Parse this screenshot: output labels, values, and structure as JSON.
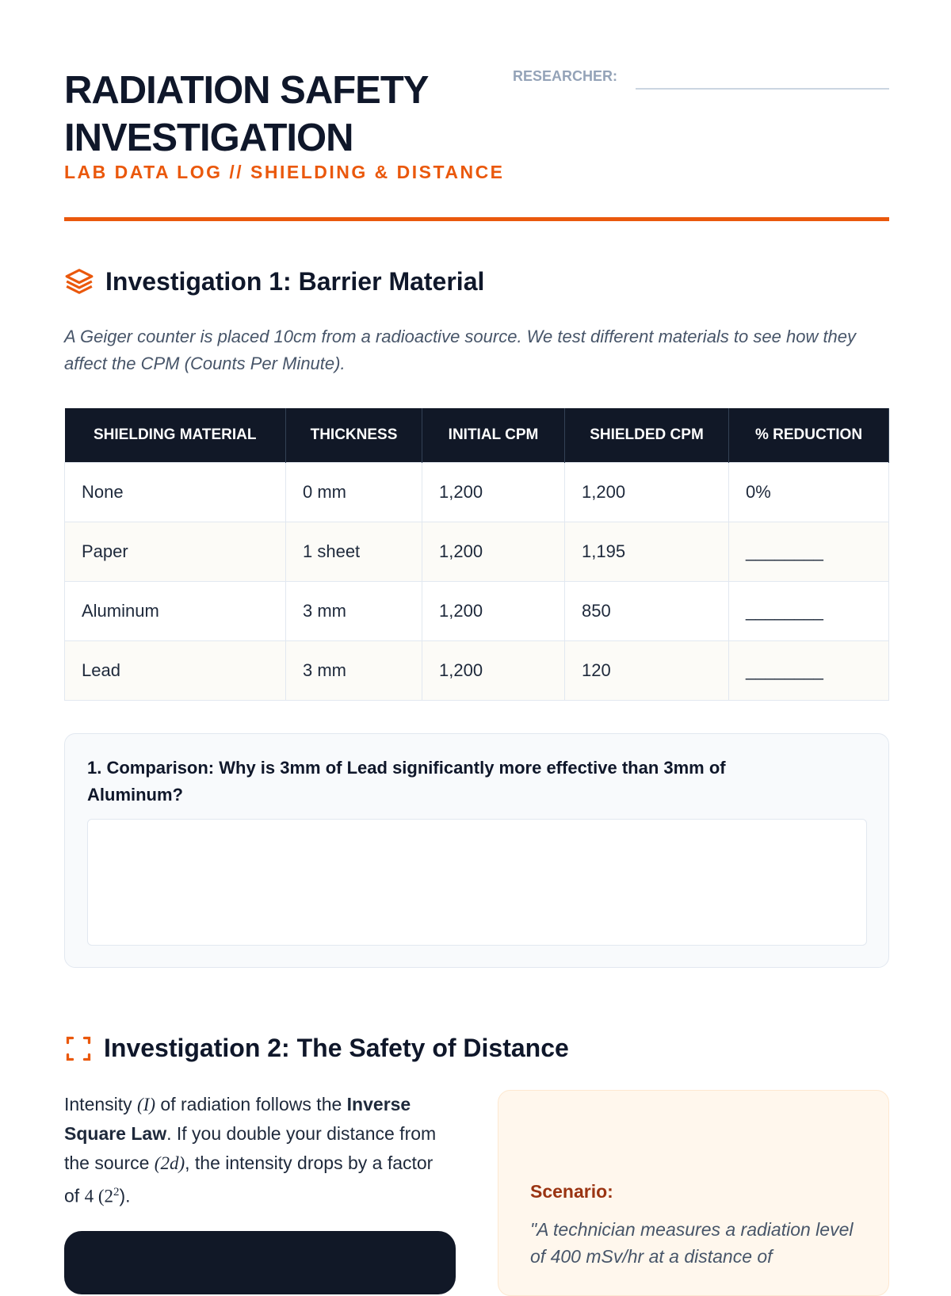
{
  "header": {
    "title": "RADIATION SAFETY INVESTIGATION",
    "subtitle": "LAB DATA LOG // SHIELDING & DISTANCE",
    "researcher_label": "RESEARCHER:",
    "researcher_value": ""
  },
  "section1": {
    "icon": "layers-icon",
    "title": "Investigation 1: Barrier Material",
    "intro": "A Geiger counter is placed 10cm from a radioactive source. We test different materials to see how they affect the CPM (Counts Per Minute).",
    "table": {
      "headers": [
        "SHIELDING MATERIAL",
        "THICKNESS",
        "INITIAL CPM",
        "SHIELDED CPM",
        "% REDUCTION"
      ],
      "rows": [
        [
          "None",
          "0 mm",
          "1,200",
          "1,200",
          "0%"
        ],
        [
          "Paper",
          "1 sheet",
          "1,200",
          "1,195",
          "________"
        ],
        [
          "Aluminum",
          "3 mm",
          "1,200",
          "850",
          "________"
        ],
        [
          "Lead",
          "3 mm",
          "1,200",
          "120",
          "________"
        ]
      ]
    },
    "question": "1. Comparison: Why is 3mm of Lead significantly more effective than 3mm of Aluminum?",
    "answer": ""
  },
  "section2": {
    "icon": "scan-icon",
    "title": "Investigation 2: The Safety of Distance",
    "intro": {
      "p1": "Intensity ",
      "sym_I": "(I)",
      "p2": " of radiation follows the ",
      "bold": "Inverse Square Law",
      "p3": ". If you double your distance from the source ",
      "sym_2d": "(2d)",
      "p4": ", the intensity drops by a factor of ",
      "sym_4": "4 (2",
      "sup": "2",
      "p5": ")."
    },
    "scenario_label": "Scenario:",
    "scenario_text": "\"A technician measures a radiation level of 400 mSv/hr at a distance of"
  },
  "colors": {
    "accent": "#ea580c",
    "dark": "#111827"
  }
}
